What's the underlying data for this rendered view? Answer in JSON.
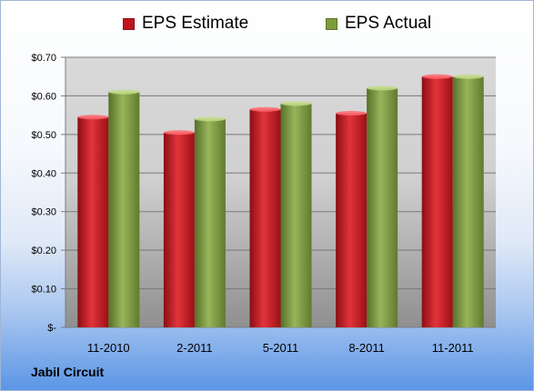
{
  "chart_data": {
    "type": "bar",
    "categories": [
      "11-2010",
      "2-2011",
      "5-2011",
      "8-2011",
      "11-2011"
    ],
    "series": [
      {
        "name": "EPS Estimate",
        "color": "#c0141e",
        "values": [
          0.545,
          0.505,
          0.565,
          0.555,
          0.65
        ]
      },
      {
        "name": "EPS Actual",
        "color": "#7d9c3c",
        "values": [
          0.61,
          0.54,
          0.58,
          0.62,
          0.65
        ]
      }
    ],
    "yticks": [
      {
        "value": 0.0,
        "label": "$-"
      },
      {
        "value": 0.1,
        "label": "$0.10"
      },
      {
        "value": 0.2,
        "label": "$0.20"
      },
      {
        "value": 0.3,
        "label": "$0.30"
      },
      {
        "value": 0.4,
        "label": "$0.40"
      },
      {
        "value": 0.5,
        "label": "$0.50"
      },
      {
        "value": 0.6,
        "label": "$0.60"
      },
      {
        "value": 0.7,
        "label": "$0.70"
      }
    ],
    "ylim": [
      0,
      0.7
    ],
    "grid": true,
    "legend_position": "top"
  },
  "company_name": "Jabil Circuit"
}
